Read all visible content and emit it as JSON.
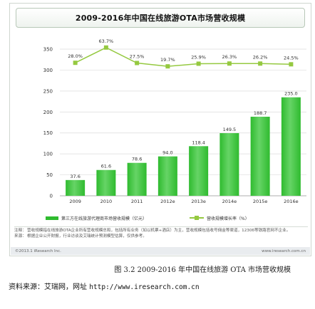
{
  "figure": {
    "title": "2009-2016年中国在线旅游OTA市场营收规模",
    "legend": {
      "bar_label": "第三方在线旅游代理商市场营收规模（亿元）",
      "line_label": "营收规模增长率（%）"
    },
    "notes": [
      {
        "label": "注释：",
        "text": "营收规模指在线旅游OTA企业所有营收规模总和，包括所有业务（如以机票+酒店）为主，营收规模包括收号佣金等渠道，12306等铁路官网不企业。"
      },
      {
        "label": "来源：",
        "text": "根据企业公开财报，行业访谈及艾瑞统计预测模型估算，仅供参考。"
      }
    ],
    "copyright": "©2013.1 iResearch Inc.",
    "website": "www.iresearch.com.cn"
  },
  "caption": "图 3.2  2009-2016 年中国在线旅游 OTA 市场营收规模",
  "source": {
    "label": "资料来源：艾瑞网，网址 ",
    "url": "http://www.iresearch.com.cn"
  },
  "colors": {
    "bar": "#2fbb2f",
    "bar_top": "#66d466",
    "line": "#95c940",
    "grid": "#dcdcdc",
    "axis_text": "#333333"
  },
  "chart_data": {
    "type": "bar",
    "title": "2009-2016年中国在线旅游OTA市场营收规模",
    "categories": [
      "2009",
      "2010",
      "2011",
      "2012e",
      "2013e",
      "2014e",
      "2015e",
      "2016e"
    ],
    "series": [
      {
        "name": "第三方在线旅游代理商市场营收规模（亿元）",
        "type": "bar",
        "values": [
          37.6,
          61.6,
          78.6,
          94.0,
          118.4,
          149.5,
          188.7,
          235.0
        ],
        "labels": [
          "37.6",
          "61.6",
          "78.6",
          "94.0",
          "118.4",
          "149.5",
          "188.7",
          "235.0"
        ]
      },
      {
        "name": "营收规模增长率（%）",
        "type": "line",
        "values": [
          28.0,
          63.7,
          27.5,
          19.7,
          25.9,
          26.3,
          26.2,
          24.5
        ],
        "labels": [
          "28.0%",
          "63.7%",
          "27.5%",
          "19.7%",
          "25.9%",
          "26.3%",
          "26.2%",
          "24.5%"
        ]
      }
    ],
    "y_ticks": [
      "0",
      "50",
      "100",
      "150",
      "200",
      "250",
      "300",
      "350"
    ],
    "ylim": [
      0,
      350
    ],
    "grid": true,
    "legend_position": "bottom"
  }
}
